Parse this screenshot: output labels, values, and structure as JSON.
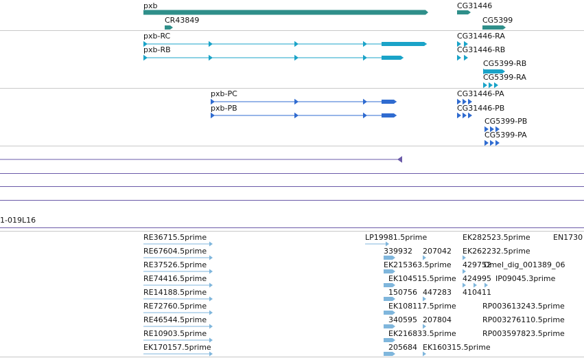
{
  "colors": {
    "gene": "#2f8f8a",
    "transcript": "#1aa3c8",
    "protein": "#2f6bd0",
    "alignment": "#6a5aa8",
    "est": "#7fb6dc",
    "divider": "#c8c8c8"
  },
  "genes_track": {
    "labels": [
      "pxb",
      "CR43849",
      "CG31446",
      "CG5399"
    ]
  },
  "transcripts_track": {
    "labels": [
      "pxb-RC",
      "pxb-RB",
      "CG31446-RA",
      "CG31446-RB",
      "CG5399-RB",
      "CG5399-RA"
    ]
  },
  "proteins_track": {
    "labels": [
      "pxb-PC",
      "pxb-PB",
      "CG31446-PA",
      "CG31446-PB",
      "CG5399-PB",
      "CG5399-PA"
    ]
  },
  "alignment_track": {
    "clone_label": "1-019L16"
  },
  "est_track": {
    "labels": [
      "RE36715.5prime",
      "RE67604.5prime",
      "RE37526.5prime",
      "RE74416.5prime",
      "RE14188.5prime",
      "RE72760.5prime",
      "RE46544.5prime",
      "RE10903.5prime",
      "EK170157.5prime",
      "LP19981.5prime",
      "339932",
      "207042",
      "EK215363.5prime",
      "EK104515.5prime",
      "150756",
      "447283",
      "EK108117.5prime",
      "340595",
      "207804",
      "EK216833.5prime",
      "205684",
      "EK160315.5prime",
      "EK282523.5prime",
      "EK262232.5prime",
      "429752",
      "Dmel_dig_001389_06",
      "424995",
      "IP09045.3prime",
      "410411",
      "RP003613243.5prime",
      "RP003276110.5prime",
      "RP003597823.5prime",
      "EN1730"
    ]
  }
}
